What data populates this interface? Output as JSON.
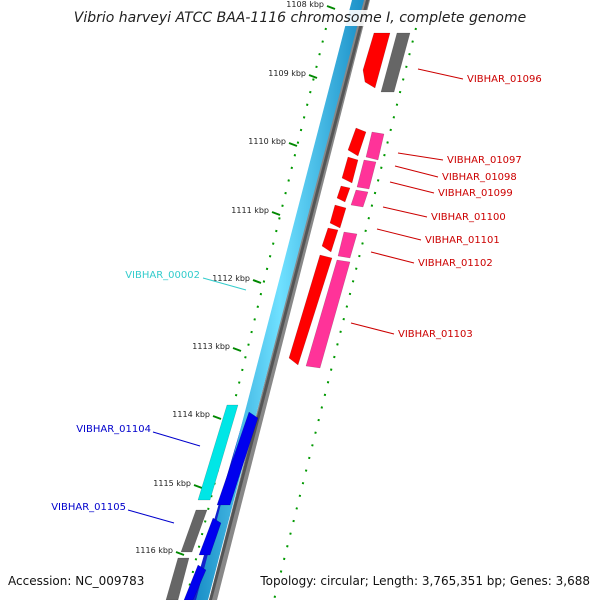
{
  "title": "Vibrio harveyi ATCC BAA-1116 chromosome I, complete genome",
  "accession": "Accession: NC_009783",
  "footer_info": "Topology: circular; Length: 3,765,351 bp; Genes: 3,688",
  "colors": {
    "forward_cds": "#ff0000",
    "forward_cds_alt": "#ff3399",
    "reverse_cds": "#0000ee",
    "reverse_cds_alt": "#00e6e6",
    "other_gene": "#666666",
    "backbone": "#33ccff",
    "tick": "#008800",
    "forward_label": "#cc0000",
    "reverse_label": "#0000cc",
    "alt_label": "#33cccc"
  },
  "kbp_ticks": [
    {
      "label": "1108 kbp"
    },
    {
      "label": "1109 kbp"
    },
    {
      "label": "1110 kbp"
    },
    {
      "label": "1111 kbp"
    },
    {
      "label": "1112 kbp"
    },
    {
      "label": "1113 kbp"
    },
    {
      "label": "1114 kbp"
    },
    {
      "label": "1115 kbp"
    },
    {
      "label": "1116 kbp"
    }
  ],
  "gene_labels": {
    "forward": [
      "VIBHAR_01096",
      "VIBHAR_01097",
      "VIBHAR_01098",
      "VIBHAR_01099",
      "VIBHAR_01100",
      "VIBHAR_01101",
      "VIBHAR_01102",
      "VIBHAR_01103"
    ],
    "reverse": [
      "VIBHAR_00002",
      "VIBHAR_01104",
      "VIBHAR_01105"
    ]
  }
}
